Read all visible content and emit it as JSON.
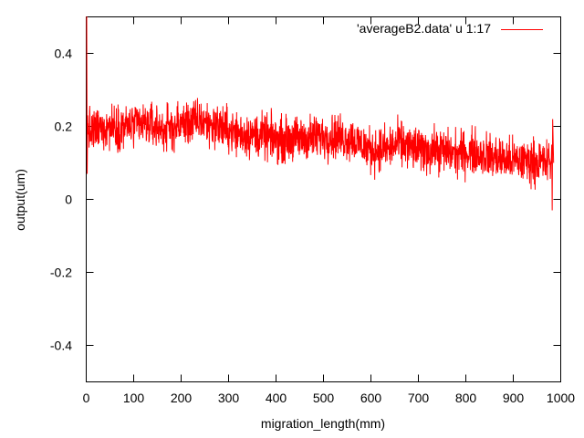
{
  "chart_data": {
    "type": "line",
    "title": "",
    "xlabel": "migration_length(mm)",
    "ylabel": "output(um)",
    "xlim": [
      0,
      1000
    ],
    "ylim": [
      -0.5,
      0.5
    ],
    "x_ticks": [
      0,
      100,
      200,
      300,
      400,
      500,
      600,
      700,
      800,
      900,
      1000
    ],
    "y_ticks": [
      -0.4,
      -0.2,
      0,
      0.2,
      0.4
    ],
    "y_tick_labels": [
      "-0.4",
      "-0.2",
      "0",
      "0.2",
      "0.4"
    ],
    "grid": false,
    "legend_position": "top-right",
    "series": [
      {
        "name": "'averageB2.data' u 1:17",
        "color": "#ff0000",
        "trend": {
          "x": [
            0,
            3,
            10,
            40,
            90,
            130,
            170,
            200,
            240,
            280,
            320,
            360,
            400,
            440,
            480,
            520,
            560,
            600,
            640,
            660,
            700,
            740,
            780,
            820,
            860,
            900,
            940,
            970,
            985
          ],
          "y": [
            0.5,
            0.2,
            0.18,
            0.2,
            0.2,
            0.205,
            0.19,
            0.205,
            0.215,
            0.2,
            0.18,
            0.175,
            0.165,
            0.165,
            0.17,
            0.175,
            0.165,
            0.135,
            0.14,
            0.155,
            0.135,
            0.135,
            0.125,
            0.13,
            0.115,
            0.105,
            0.105,
            0.1,
            0.1
          ]
        },
        "noise_amplitude": 0.03,
        "spikes": [
          {
            "x": 1,
            "y": 0.5
          },
          {
            "x": 2,
            "y": 0.07
          },
          {
            "x": 981,
            "y": 0.15
          },
          {
            "x": 982,
            "y": -0.03
          },
          {
            "x": 983,
            "y": 0.22
          }
        ],
        "x_end": 985
      }
    ]
  }
}
